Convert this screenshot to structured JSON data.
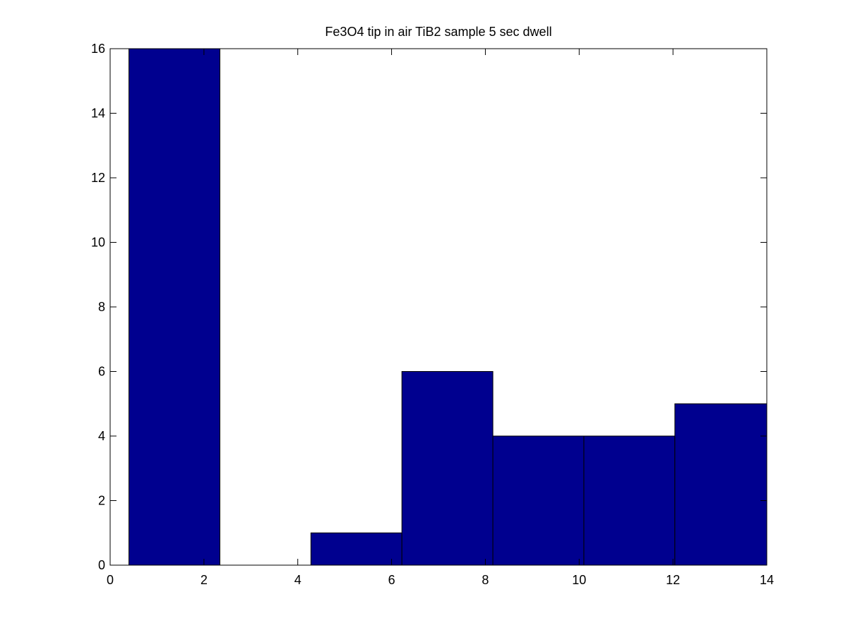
{
  "chart_data": {
    "type": "bar",
    "subtype": "histogram",
    "title": "Fe3O4 tip in air TiB2 sample 5 sec dwell",
    "xlabel": "",
    "ylabel": "",
    "xlim": [
      0,
      14
    ],
    "ylim": [
      0,
      16
    ],
    "xticks": [
      "0",
      "2",
      "4",
      "6",
      "8",
      "10",
      "12",
      "14"
    ],
    "yticks": [
      "0",
      "2",
      "4",
      "6",
      "8",
      "10",
      "12",
      "14",
      "16"
    ],
    "bins": [
      {
        "x0": 0.4,
        "x1": 2.34,
        "value": 16
      },
      {
        "x0": 2.34,
        "x1": 4.28,
        "value": 0
      },
      {
        "x0": 4.28,
        "x1": 6.22,
        "value": 1
      },
      {
        "x0": 6.22,
        "x1": 8.16,
        "value": 6
      },
      {
        "x0": 8.16,
        "x1": 10.1,
        "value": 4
      },
      {
        "x0": 10.1,
        "x1": 12.04,
        "value": 4
      },
      {
        "x0": 12.04,
        "x1": 14.0,
        "value": 5
      }
    ],
    "colors": {
      "bar_fill": "#00008f",
      "bar_edge": "#000000",
      "axes": "#000000",
      "background": "#ffffff"
    },
    "grid": false,
    "legend": "none"
  }
}
